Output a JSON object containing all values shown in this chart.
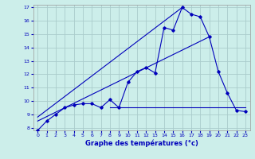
{
  "title": "Graphe des températures (°c)",
  "bg_color": "#cceeea",
  "grid_color": "#aacccc",
  "line_color": "#0000bb",
  "xlim": [
    -0.5,
    23.5
  ],
  "ylim": [
    7.8,
    17.2
  ],
  "xticks": [
    0,
    1,
    2,
    3,
    4,
    5,
    6,
    7,
    8,
    9,
    10,
    11,
    12,
    13,
    14,
    15,
    16,
    17,
    18,
    19,
    20,
    21,
    22,
    23
  ],
  "yticks": [
    8,
    9,
    10,
    11,
    12,
    13,
    14,
    15,
    16,
    17
  ],
  "series1_x": [
    0,
    1,
    2,
    3,
    4,
    5,
    6,
    7,
    8,
    9,
    10,
    11,
    12,
    13,
    14,
    15,
    16,
    17,
    18,
    19,
    20,
    21,
    22,
    23
  ],
  "series1_y": [
    7.8,
    8.5,
    9.0,
    9.5,
    9.7,
    9.8,
    9.8,
    9.5,
    10.1,
    9.5,
    11.4,
    12.2,
    12.5,
    12.1,
    15.5,
    15.3,
    17.0,
    16.5,
    16.3,
    14.8,
    12.2,
    10.6,
    9.3,
    9.2
  ],
  "series2_x": [
    8,
    23
  ],
  "series2_y": [
    9.5,
    9.5
  ],
  "series3_x": [
    0,
    19
  ],
  "series3_y": [
    8.5,
    14.8
  ],
  "series4_x": [
    0,
    16
  ],
  "series4_y": [
    8.8,
    17.0
  ]
}
